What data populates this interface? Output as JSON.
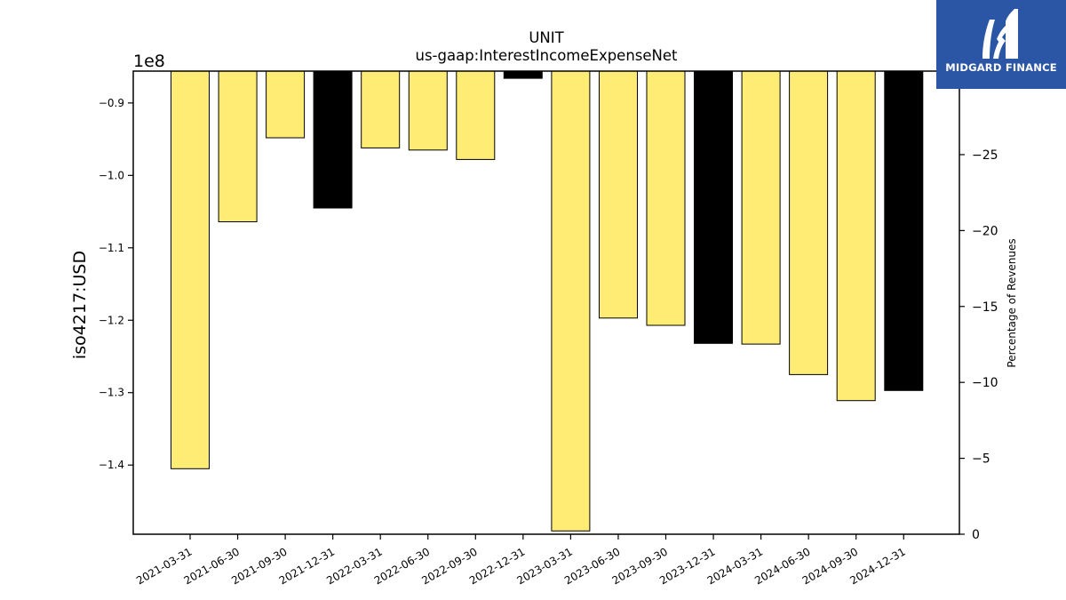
{
  "chart_data": {
    "type": "bar",
    "title": "UNIT",
    "subtitle": "us-gaap:InterestIncomeExpenseNet",
    "ylabel": "iso4217:USD",
    "y_scale_label": "1e8",
    "y2label": "Percentage of Revenues",
    "categories": [
      "2021-03-31",
      "2021-06-30",
      "2021-09-30",
      "2021-12-31",
      "2022-03-31",
      "2022-06-30",
      "2022-09-30",
      "2022-12-31",
      "2023-03-31",
      "2023-06-30",
      "2023-09-30",
      "2023-12-31",
      "2024-03-31",
      "2024-06-30",
      "2024-09-30",
      "2024-12-31"
    ],
    "values": [
      -1.405,
      -1.064,
      -0.948,
      -1.045,
      -0.962,
      -0.965,
      -0.978,
      -0.866,
      -1.491,
      -1.197,
      -1.207,
      -1.232,
      -1.233,
      -1.275,
      -1.311,
      -1.297
    ],
    "highlight": [
      false,
      false,
      false,
      true,
      false,
      false,
      false,
      true,
      false,
      false,
      false,
      true,
      false,
      false,
      false,
      true
    ],
    "ylim": [
      -1.4955,
      -0.856
    ],
    "yticks": [
      -0.9,
      -1.0,
      -1.1,
      -1.2,
      -1.3,
      -1.4
    ],
    "ytick_labels": [
      "−0.9",
      "−1.0",
      "−1.1",
      "−1.2",
      "−1.3",
      "−1.4"
    ],
    "y2lim": [
      0,
      -30.5
    ],
    "y2ticks": [
      -25,
      -20,
      -15,
      -10,
      -5,
      0
    ],
    "y2tick_labels": [
      "−25",
      "−20",
      "−15",
      "−10",
      "−5",
      "0"
    ],
    "colors": {
      "bar": "#feec75",
      "highlight": "#000000",
      "edge": "#000000"
    }
  },
  "logo": {
    "text": "MIDGARD FINANCE",
    "color": "#2b56a6"
  }
}
